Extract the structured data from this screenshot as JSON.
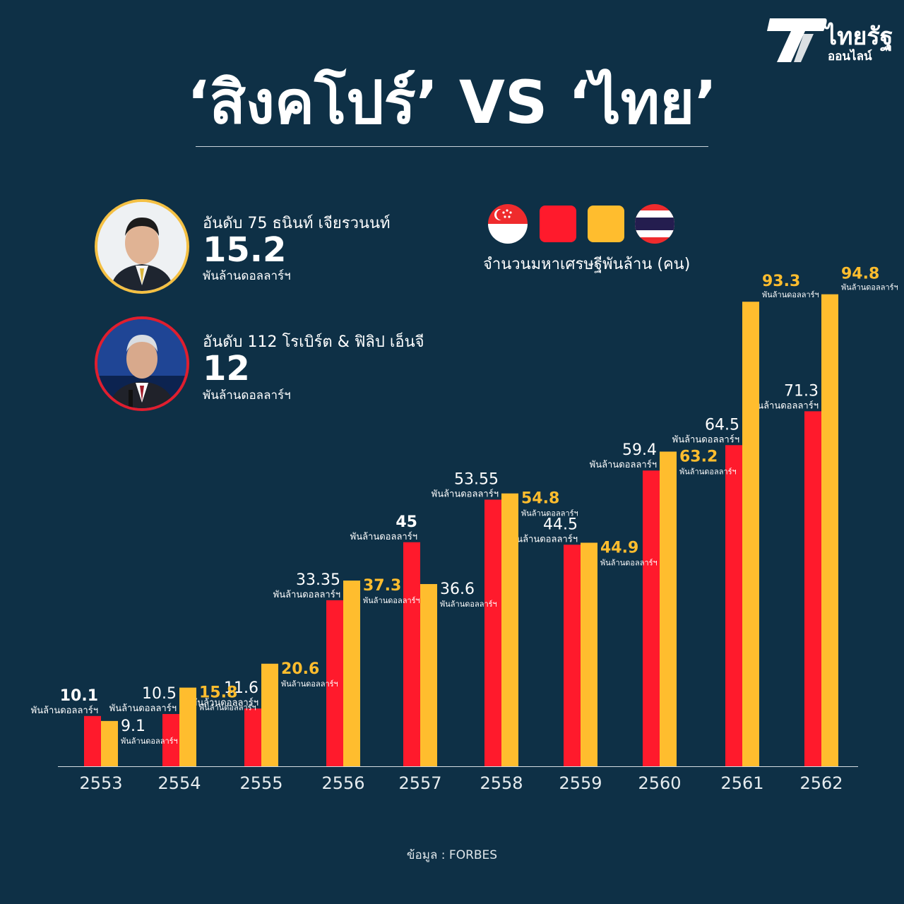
{
  "brand": {
    "name": "ไทยรัฐ",
    "sub": "ออนไลน์"
  },
  "title": "‘สิงคโปร์’ VS ‘ไทย’",
  "people": [
    {
      "rank": "อันดับ 75 ธนินท์ เจียรวนนท์",
      "worth": "15.2",
      "unit": "พันล้านดอลลาร์ฯ",
      "ring": "#f4c043"
    },
    {
      "rank": "อันดับ 112 โรเบิร์ต & ฟิลิป เอ็นจี",
      "worth": "12",
      "unit": "พันล้านดอลลาร์ฯ",
      "ring": "#e01e2e"
    }
  ],
  "legend": {
    "caption": "จำนวนมหาเศรษฐีพันล้าน (คน)",
    "singapore_color": "#ff1a2c",
    "thailand_color": "#ffbd2e"
  },
  "source": "ข้อมูล : FORBES",
  "chart_data": {
    "type": "bar",
    "categories": [
      "2553",
      "2554",
      "2555",
      "2556",
      "2557",
      "2558",
      "2559",
      "2560",
      "2561",
      "2562"
    ],
    "series": [
      {
        "country": "singapore",
        "color": "#ff1a2c",
        "values": [
          10.1,
          10.5,
          11.6,
          33.35,
          45,
          53.55,
          44.5,
          59.4,
          64.5,
          71.3
        ],
        "labels": [
          "10.1",
          "10.5",
          "11.6",
          "33.35",
          "45",
          "53.55",
          "44.5",
          "59.4",
          "64.5",
          "71.3"
        ]
      },
      {
        "country": "thailand",
        "color": "#ffbd2e",
        "values": [
          9.1,
          15.8,
          20.6,
          37.3,
          36.6,
          54.8,
          44.9,
          63.2,
          93.3,
          94.8
        ],
        "labels": [
          "9.1",
          "15.8",
          "20.6",
          "37.3",
          "36.6",
          "54.8",
          "44.9",
          "63.2",
          "93.3",
          "94.8"
        ]
      }
    ],
    "value_unit": "พันล้านดอลลาร์ฯ",
    "ylim": [
      0,
      100
    ],
    "grid": false,
    "legend_position": "top-right"
  }
}
